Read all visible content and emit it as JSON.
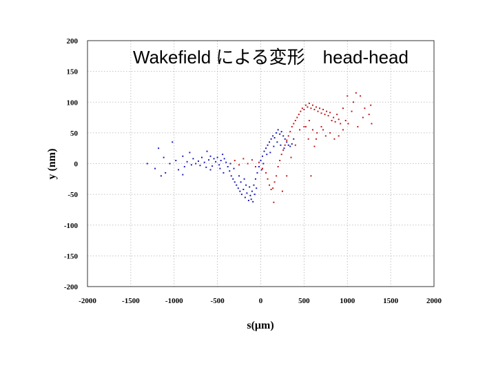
{
  "chart_data": {
    "type": "scatter",
    "title": "Wakefield による変形　head-head",
    "xlabel": "s(μm)",
    "ylabel": "y (nm)",
    "xlim": [
      -2000,
      2000
    ],
    "ylim": [
      -200,
      200
    ],
    "x_ticks": [
      -2000,
      -1500,
      -1000,
      -500,
      0,
      500,
      1000,
      1500,
      2000
    ],
    "y_ticks": [
      200,
      150,
      100,
      50,
      0,
      -50,
      -100,
      -150,
      -200
    ],
    "grid": true,
    "legend": "none",
    "series": [
      {
        "color": "#1a1ab8",
        "points": [
          [
            -1310,
            0
          ],
          [
            -1220,
            -8
          ],
          [
            -1180,
            25
          ],
          [
            -1150,
            -20
          ],
          [
            -1120,
            10
          ],
          [
            -1100,
            -15
          ],
          [
            -1050,
            0
          ],
          [
            -1020,
            35
          ],
          [
            -980,
            5
          ],
          [
            -950,
            -10
          ],
          [
            -900,
            12
          ],
          [
            -880,
            -5
          ],
          [
            -850,
            3
          ],
          [
            -820,
            18
          ],
          [
            -800,
            -2
          ],
          [
            -780,
            8
          ],
          [
            -750,
            0
          ],
          [
            -720,
            4
          ],
          [
            -700,
            -3
          ],
          [
            -680,
            10
          ],
          [
            -650,
            2
          ],
          [
            -630,
            -6
          ],
          [
            -600,
            6
          ],
          [
            -580,
            12
          ],
          [
            -560,
            -4
          ],
          [
            -540,
            8
          ],
          [
            -520,
            3
          ],
          [
            -500,
            10
          ],
          [
            -480,
            -2
          ],
          [
            -460,
            5
          ],
          [
            -440,
            15
          ],
          [
            -420,
            8
          ],
          [
            -400,
            2
          ],
          [
            -380,
            -5
          ],
          [
            -360,
            -12
          ],
          [
            -340,
            -20
          ],
          [
            -320,
            -25
          ],
          [
            -300,
            -30
          ],
          [
            -280,
            -35
          ],
          [
            -260,
            -40
          ],
          [
            -240,
            -45
          ],
          [
            -220,
            -50
          ],
          [
            -200,
            -42
          ],
          [
            -180,
            -55
          ],
          [
            -160,
            -48
          ],
          [
            -140,
            -60
          ],
          [
            -120,
            -52
          ],
          [
            -100,
            -45
          ],
          [
            -80,
            -35
          ],
          [
            -60,
            -25
          ],
          [
            -40,
            -15
          ],
          [
            -20,
            -5
          ],
          [
            0,
            5
          ],
          [
            20,
            12
          ],
          [
            40,
            20
          ],
          [
            60,
            25
          ],
          [
            80,
            30
          ],
          [
            100,
            35
          ],
          [
            120,
            40
          ],
          [
            140,
            45
          ],
          [
            160,
            42
          ],
          [
            180,
            50
          ],
          [
            200,
            55
          ],
          [
            220,
            48
          ],
          [
            240,
            52
          ],
          [
            260,
            45
          ],
          [
            280,
            40
          ],
          [
            300,
            35
          ],
          [
            320,
            30
          ],
          [
            340,
            28
          ],
          [
            360,
            32
          ],
          [
            380,
            40
          ],
          [
            -900,
            -18
          ],
          [
            -620,
            20
          ],
          [
            -580,
            -10
          ],
          [
            -470,
            -8
          ],
          [
            -430,
            -15
          ],
          [
            -350,
            0
          ],
          [
            -310,
            -8
          ],
          [
            -250,
            -20
          ],
          [
            -230,
            -30
          ],
          [
            -190,
            -25
          ],
          [
            -170,
            -35
          ],
          [
            -130,
            -38
          ],
          [
            -110,
            -58
          ],
          [
            -90,
            -62
          ],
          [
            -70,
            -50
          ],
          [
            -50,
            -40
          ],
          [
            10,
            -10
          ],
          [
            30,
            0
          ],
          [
            70,
            15
          ],
          [
            110,
            18
          ],
          [
            150,
            28
          ],
          [
            190,
            35
          ],
          [
            230,
            30
          ],
          [
            270,
            25
          ]
        ]
      },
      {
        "color": "#c01818",
        "points": [
          [
            -300,
            5
          ],
          [
            -250,
            -2
          ],
          [
            -200,
            8
          ],
          [
            -150,
            0
          ],
          [
            -100,
            6
          ],
          [
            -60,
            -5
          ],
          [
            -20,
            2
          ],
          [
            20,
            -8
          ],
          [
            60,
            -15
          ],
          [
            80,
            -25
          ],
          [
            100,
            -35
          ],
          [
            120,
            -42
          ],
          [
            140,
            -40
          ],
          [
            160,
            -30
          ],
          [
            180,
            -20
          ],
          [
            200,
            -5
          ],
          [
            220,
            5
          ],
          [
            240,
            15
          ],
          [
            260,
            22
          ],
          [
            280,
            30
          ],
          [
            300,
            38
          ],
          [
            320,
            45
          ],
          [
            340,
            52
          ],
          [
            360,
            60
          ],
          [
            380,
            65
          ],
          [
            400,
            70
          ],
          [
            420,
            75
          ],
          [
            440,
            80
          ],
          [
            460,
            85
          ],
          [
            480,
            90
          ],
          [
            500,
            88
          ],
          [
            520,
            95
          ],
          [
            540,
            92
          ],
          [
            560,
            98
          ],
          [
            580,
            90
          ],
          [
            600,
            95
          ],
          [
            620,
            88
          ],
          [
            640,
            92
          ],
          [
            660,
            85
          ],
          [
            680,
            90
          ],
          [
            700,
            82
          ],
          [
            720,
            88
          ],
          [
            740,
            80
          ],
          [
            760,
            85
          ],
          [
            780,
            78
          ],
          [
            800,
            83
          ],
          [
            820,
            70
          ],
          [
            840,
            75
          ],
          [
            860,
            68
          ],
          [
            880,
            80
          ],
          [
            900,
            72
          ],
          [
            920,
            65
          ],
          [
            950,
            90
          ],
          [
            980,
            70
          ],
          [
            1000,
            110
          ],
          [
            1010,
            65
          ],
          [
            1050,
            85
          ],
          [
            1070,
            100
          ],
          [
            1100,
            115
          ],
          [
            1120,
            60
          ],
          [
            1150,
            110
          ],
          [
            1180,
            75
          ],
          [
            1200,
            90
          ],
          [
            1250,
            80
          ],
          [
            1270,
            95
          ],
          [
            1280,
            65
          ],
          [
            150,
            -63
          ],
          [
            250,
            -45
          ],
          [
            300,
            -20
          ],
          [
            350,
            10
          ],
          [
            400,
            30
          ],
          [
            450,
            55
          ],
          [
            500,
            60
          ],
          [
            550,
            40
          ],
          [
            600,
            55
          ],
          [
            650,
            50
          ],
          [
            700,
            60
          ],
          [
            750,
            45
          ],
          [
            800,
            50
          ],
          [
            850,
            40
          ],
          [
            620,
            28
          ],
          [
            580,
            -20
          ],
          [
            640,
            40
          ],
          [
            720,
            55
          ],
          [
            900,
            45
          ],
          [
            950,
            55
          ],
          [
            560,
            70
          ],
          [
            520,
            60
          ]
        ]
      }
    ]
  }
}
